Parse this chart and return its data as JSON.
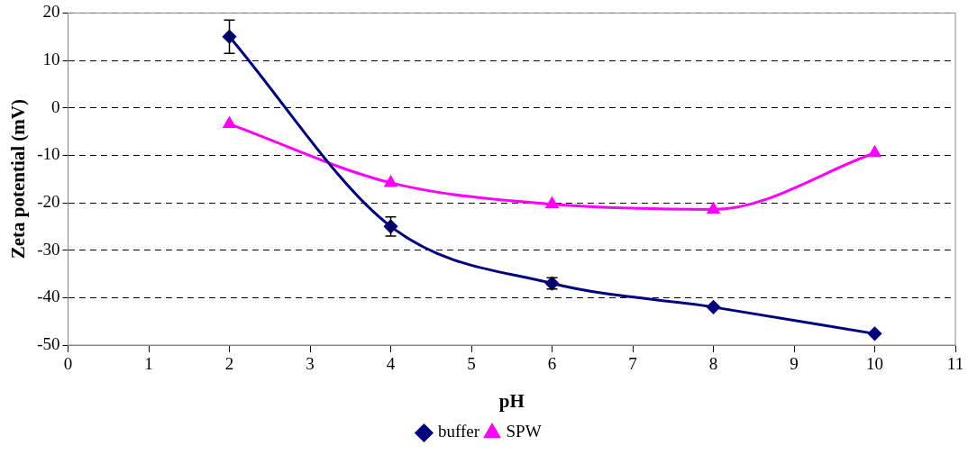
{
  "chart_data": {
    "type": "line",
    "xlabel": "pH",
    "ylabel": "Zeta potential (mV)",
    "xlim": [
      0,
      11
    ],
    "xticks": [
      0,
      1,
      2,
      3,
      4,
      5,
      6,
      7,
      8,
      9,
      10,
      11
    ],
    "ylim": [
      -50,
      20
    ],
    "yticks": [
      -50,
      -40,
      -30,
      -20,
      -10,
      0,
      10,
      20
    ],
    "grid": "y",
    "legend": "bottom",
    "x": [
      2,
      4,
      6,
      8,
      10
    ],
    "series": [
      {
        "name": "buffer",
        "color": "#000080",
        "marker": "diamond",
        "values": [
          15,
          -25,
          -37,
          -42,
          -47.6
        ],
        "errors": [
          3.5,
          2,
          1.2,
          null,
          null
        ]
      },
      {
        "name": "SPW",
        "color": "#ff00ff",
        "marker": "triangle",
        "values": [
          -3.4,
          -15.8,
          -20.3,
          -21.4,
          -9.5
        ]
      }
    ]
  }
}
